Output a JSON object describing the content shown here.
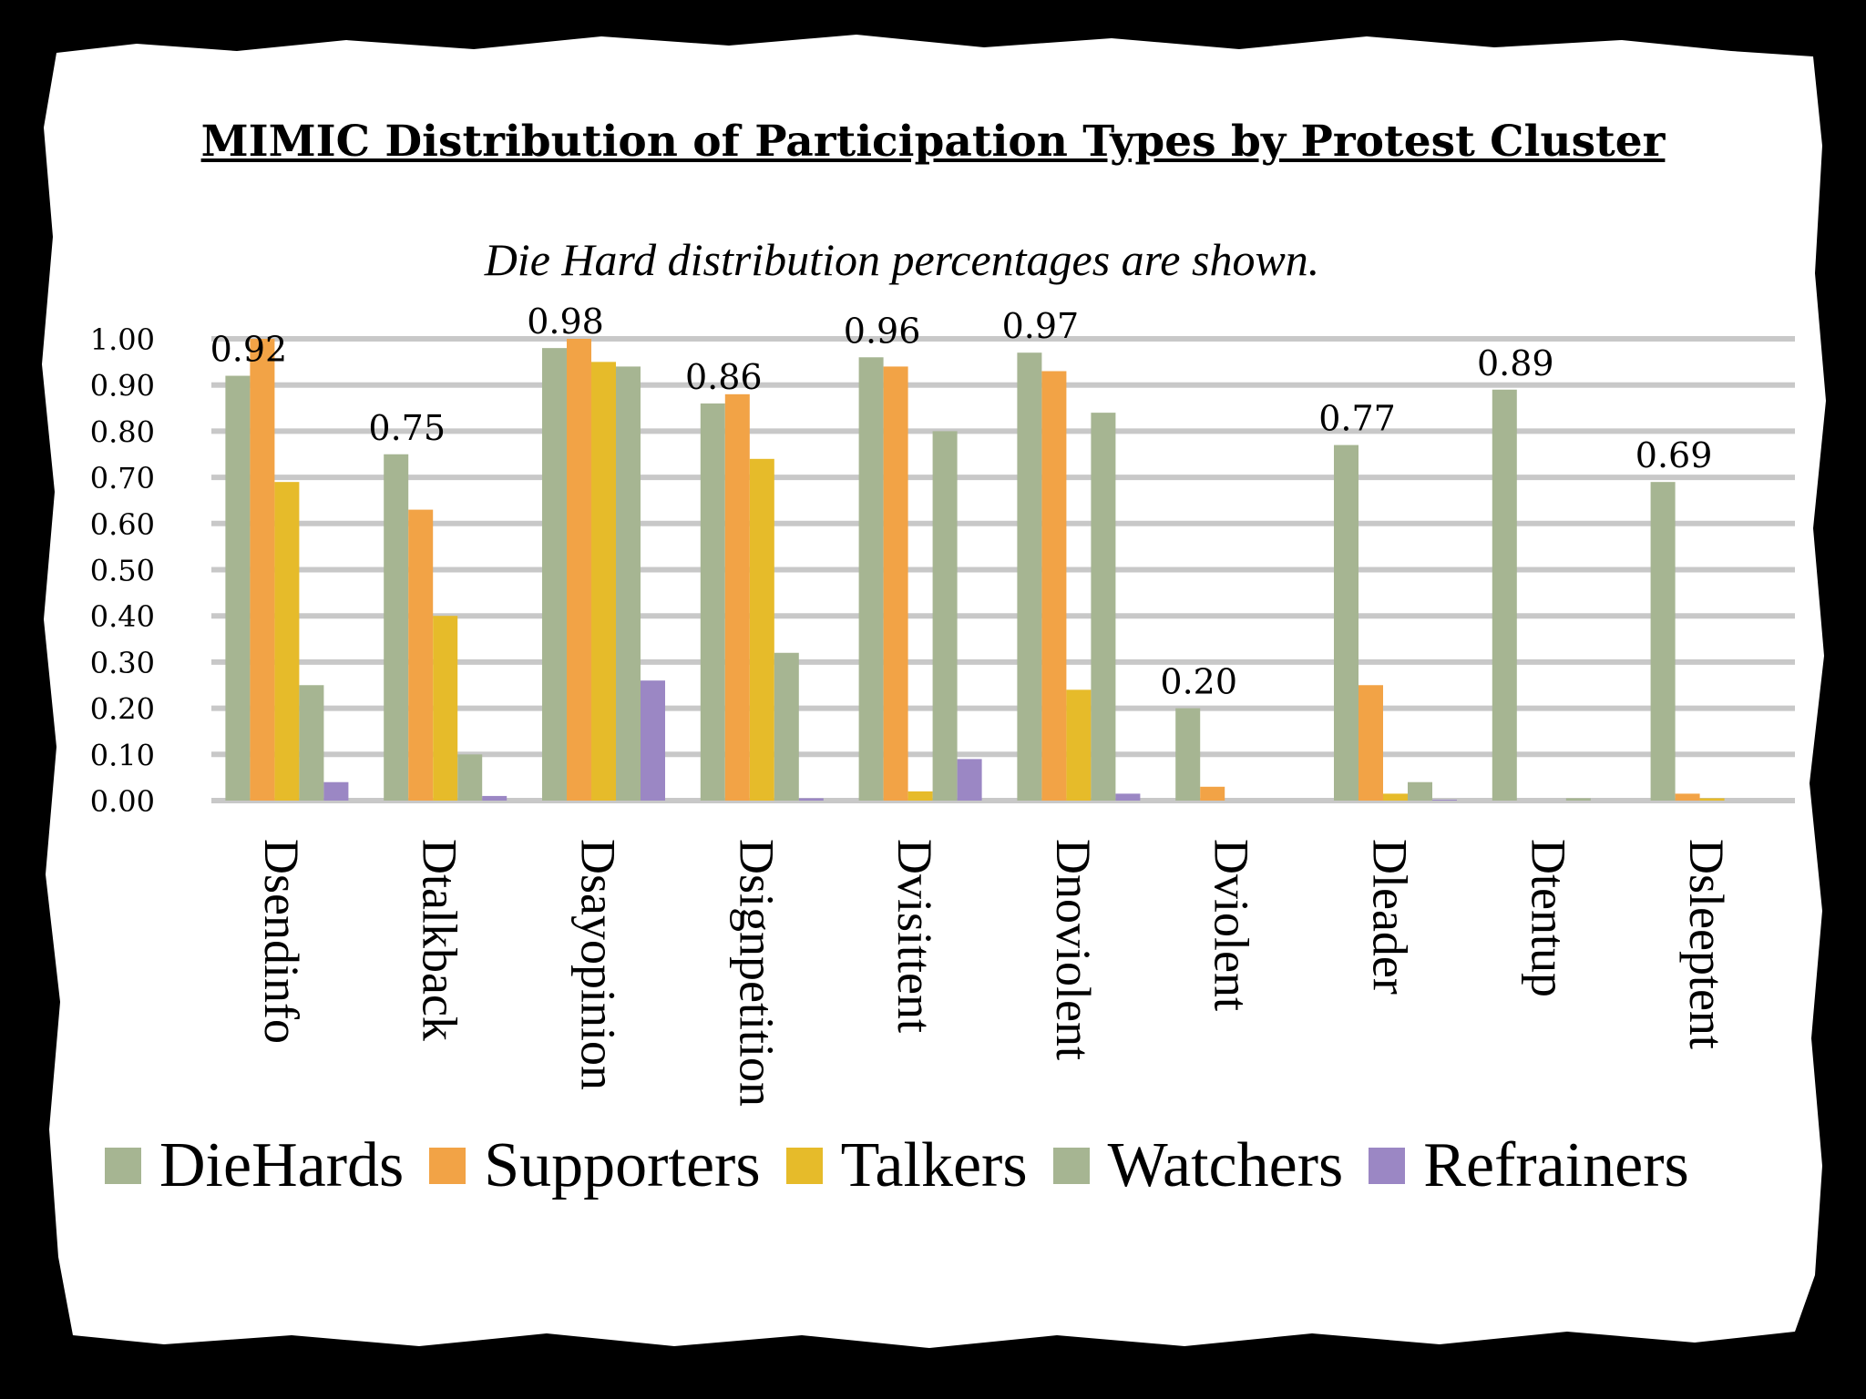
{
  "title": "MIMIC Distribution of Participation Types by Protest Cluster",
  "subtitle": "Die Hard distribution percentages are shown.",
  "colors": {
    "background_frame": "#000000",
    "paper": "#ffffff",
    "gridline": "#c8c8c8"
  },
  "chart_data": {
    "type": "bar",
    "categories": [
      "Dsendinfo",
      "Dtalkback",
      "Dsayopinion",
      "Dsignpetition",
      "Dvisittent",
      "Dnoviolent",
      "Dviolent",
      "Dleader",
      "Dtentup",
      "Dsleeptent"
    ],
    "ylim": [
      0,
      1.0
    ],
    "yticks": [
      "0.00",
      "0.10",
      "0.20",
      "0.30",
      "0.40",
      "0.50",
      "0.60",
      "0.70",
      "0.80",
      "0.90",
      "1.00"
    ],
    "grid": true,
    "legend_position": "bottom",
    "series": [
      {
        "name": "DieHards",
        "color": "#a6b592",
        "values": [
          0.92,
          0.75,
          0.98,
          0.86,
          0.96,
          0.97,
          0.2,
          0.77,
          0.89,
          0.69
        ]
      },
      {
        "name": "Supporters",
        "color": "#f2a346",
        "values": [
          1.0,
          0.63,
          1.0,
          0.88,
          0.94,
          0.93,
          0.03,
          0.25,
          0.0,
          0.015
        ]
      },
      {
        "name": "Talkers",
        "color": "#e6bb2a",
        "values": [
          0.69,
          0.4,
          0.95,
          0.74,
          0.02,
          0.24,
          0.0,
          0.015,
          0.0,
          0.005
        ]
      },
      {
        "name": "Watchers",
        "color": "#a6b592",
        "values": [
          0.25,
          0.1,
          0.94,
          0.32,
          0.8,
          0.84,
          0.0,
          0.04,
          0.005,
          0.0
        ]
      },
      {
        "name": "Refrainers",
        "color": "#9b87c4",
        "values": [
          0.04,
          0.01,
          0.26,
          0.005,
          0.09,
          0.015,
          0.0,
          0.002,
          0.0,
          0.0
        ]
      }
    ],
    "data_labels": [
      "0.92",
      "0.75",
      "0.98",
      "0.86",
      "0.96",
      "0.97",
      "0.20",
      "0.77",
      "0.89",
      "0.69"
    ]
  }
}
